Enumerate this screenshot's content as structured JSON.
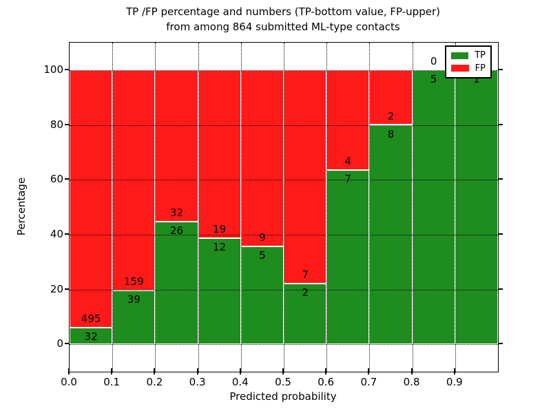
{
  "figure": {
    "title_line1": "TP /FP percentage and numbers (TP-bottom value, FP-upper)",
    "title_line2": "from among 864 submitted ML-type contacts"
  },
  "chart_data": {
    "type": "bar",
    "stacked": true,
    "normalized_to_percent": true,
    "total_contacts": 864,
    "bins": {
      "start": 0.0,
      "width": 0.1,
      "count": 10
    },
    "categories": [
      "0.0-0.1",
      "0.1-0.2",
      "0.2-0.3",
      "0.3-0.4",
      "0.4-0.5",
      "0.5-0.6",
      "0.6-0.7",
      "0.7-0.8",
      "0.8-0.9",
      "0.9-1.0"
    ],
    "series": [
      {
        "name": "TP",
        "color": "#1e8c1e",
        "values": [
          32,
          39,
          26,
          12,
          5,
          2,
          7,
          8,
          5,
          1
        ]
      },
      {
        "name": "FP",
        "color": "#ff1a1a",
        "values": [
          495,
          159,
          32,
          19,
          9,
          7,
          4,
          2,
          0,
          0
        ]
      }
    ],
    "green_percent": [
      6.1,
      19.7,
      44.8,
      38.7,
      35.7,
      22.2,
      63.6,
      80.0,
      100.0,
      100.0
    ],
    "bar_labels": {
      "tp": [
        "32",
        "39",
        "26",
        "12",
        "5",
        "2",
        "7",
        "8",
        "5",
        "1"
      ],
      "fp": [
        "495",
        "159",
        "32",
        "19",
        "9",
        "7",
        "4",
        "2",
        "0",
        ""
      ]
    },
    "xlabel": "Predicted probability",
    "ylabel": "Percentage",
    "x_ticks": [
      "0.0",
      "0.1",
      "0.2",
      "0.3",
      "0.4",
      "0.5",
      "0.6",
      "0.7",
      "0.8",
      "0.9"
    ],
    "y_ticks": [
      "0",
      "20",
      "40",
      "60",
      "80",
      "100"
    ],
    "xlim": [
      0.0,
      1.0
    ],
    "ylim": [
      -10,
      110
    ],
    "grid": "dotted",
    "legend": {
      "position": "upper right",
      "entries": [
        {
          "label": "TP",
          "color": "#1e8c1e"
        },
        {
          "label": "FP",
          "color": "#ff1a1a"
        }
      ]
    }
  }
}
